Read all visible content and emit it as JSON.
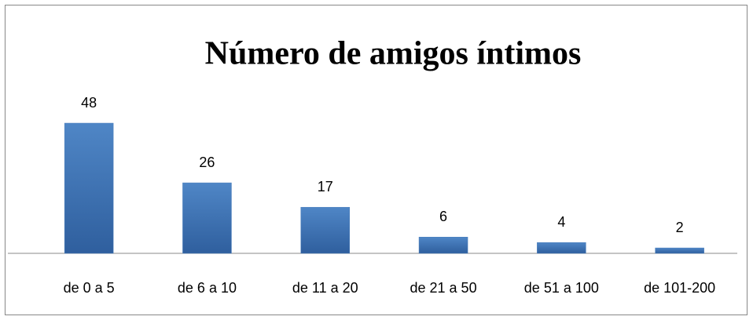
{
  "chart_data": {
    "type": "bar",
    "title": "Número de amigos íntimos",
    "categories": [
      "de 0 a 5",
      "de 6 a 10",
      "de 11 a 20",
      "de 21 a 50",
      "de 51 a 100",
      "de 101-200"
    ],
    "values": [
      48,
      26,
      17,
      6,
      4,
      2
    ],
    "color": "#4a7ebb"
  }
}
